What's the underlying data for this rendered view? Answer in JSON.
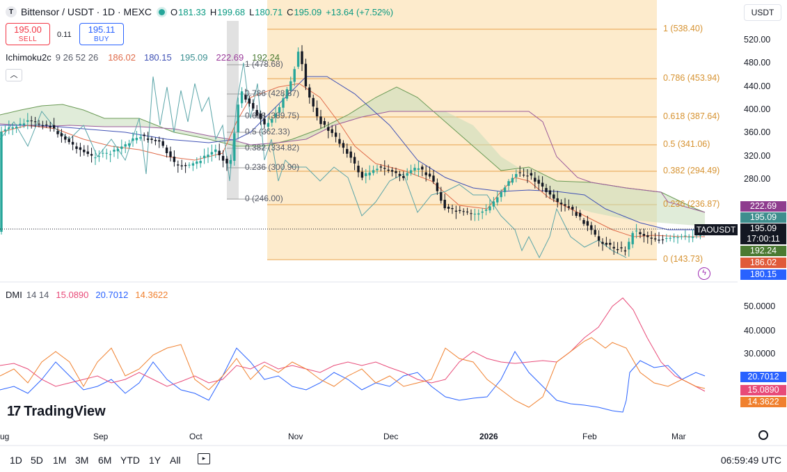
{
  "header": {
    "symbol_badge": "T",
    "title": "Bittensor / USDT · 1D · MEXC",
    "o_label": "O",
    "o_value": "181.33",
    "h_label": "H",
    "h_value": "199.68",
    "l_label": "L",
    "l_value": "180.71",
    "c_label": "C",
    "c_value": "195.09",
    "change": "+13.64 (+7.52%)"
  },
  "currency": "USDT",
  "trade": {
    "sell_price": "195.00",
    "sell_label": "SELL",
    "spread": "0.11",
    "buy_price": "195.11",
    "buy_label": "BUY",
    "sell_color": "#f23645",
    "buy_color": "#2962ff"
  },
  "ichimoku": {
    "name": "Ichimoku2c",
    "params": "9 26 52 26",
    "v1": "186.02",
    "v2": "180.15",
    "v3": "195.09",
    "v4": "222.69",
    "v5": "192.24"
  },
  "dmi": {
    "name": "DMI",
    "params": "14 14",
    "v1": "15.0890",
    "v2": "20.7012",
    "v3": "14.3622"
  },
  "price_axis": [
    "520.00",
    "480.00",
    "440.00",
    "400.00",
    "360.00",
    "320.00",
    "280.00"
  ],
  "price_tags": {
    "t1": "222.69",
    "t2": "195.09",
    "t3": "195.09",
    "countdown": "17:00:11",
    "t4": "192.24",
    "t5": "186.02",
    "t6": "180.15",
    "symbol_label": "TAOUSDT"
  },
  "fib_right": [
    {
      "label": "1 (538.40)"
    },
    {
      "label": "0.786 (453.94)"
    },
    {
      "label": "0.618 (387.64)"
    },
    {
      "label": "0.5 (341.06)"
    },
    {
      "label": "0.382 (294.49)"
    },
    {
      "label": "0.236 (236.87)"
    },
    {
      "label": "0 (143.73)"
    }
  ],
  "fib_left": [
    {
      "label": "1 (478.68)"
    },
    {
      "label": "0.786 (428.87)"
    },
    {
      "label": "0.618 (389.75)"
    },
    {
      "label": "0.5 (362.33)"
    },
    {
      "label": "0.382 (334.82)"
    },
    {
      "label": "0.236 (300.90)"
    },
    {
      "label": "0 (246.00)"
    }
  ],
  "dmi_axis": [
    "50.0000",
    "40.0000",
    "30.0000"
  ],
  "dmi_tags": {
    "a": "20.7012",
    "b": "15.0890",
    "c": "14.3622"
  },
  "x_axis": [
    "ug",
    "Sep",
    "Oct",
    "Nov",
    "Dec",
    "2026",
    "Feb",
    "Mar"
  ],
  "logo_text": "TradingView",
  "timeframes": [
    "1D",
    "5D",
    "1M",
    "3M",
    "6M",
    "YTD",
    "1Y",
    "All"
  ],
  "clock": "06:59:49 UTC",
  "colors": {
    "up": "#26a69a",
    "down": "#131722",
    "fib_fill": "#fde9c7",
    "fib_line": "#e8a04a",
    "tenkan": "#e06b4a",
    "kijun": "#3f51b5",
    "cloud": "#a8c89a",
    "lagging": "#5aa5a8",
    "dmi_plus": "#2962ff",
    "dmi_minus": "#e84a78",
    "adx": "#f0802e"
  },
  "icons": [
    "lightning-icon",
    "settings-icon",
    "calendar-range-icon",
    "collapse-chevron-icon"
  ]
}
